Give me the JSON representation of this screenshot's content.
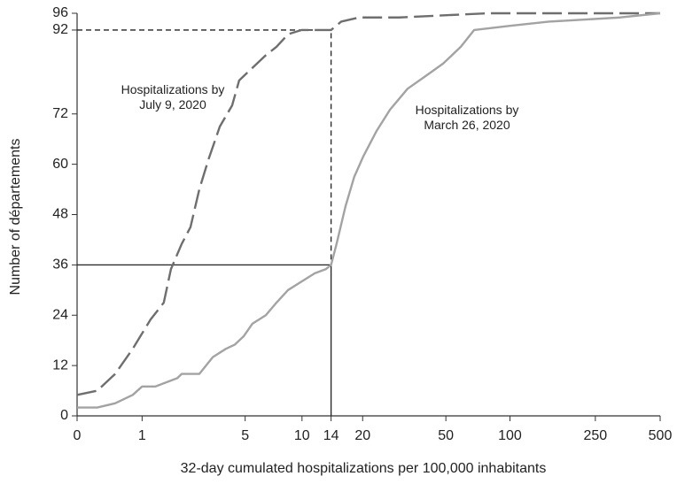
{
  "chart_data": {
    "type": "line",
    "x_label": "32-day cumulated hospitalizations per 100,000 inhabitants",
    "y_label": "Number of départements",
    "xscale": "log1p",
    "xlim": [
      0,
      500
    ],
    "xticks": [
      0,
      1,
      5,
      10,
      14,
      20,
      50,
      100,
      250,
      500
    ],
    "ylim": [
      0,
      96
    ],
    "yticks": [
      0,
      12,
      24,
      36,
      48,
      60,
      72,
      92,
      96
    ],
    "guides": [
      {
        "x": 14,
        "y": 92,
        "dashed": true
      },
      {
        "x": 14,
        "y": 36,
        "dashed": false
      }
    ],
    "series": [
      {
        "name": "Hospitalizations by July 9, 2020",
        "color": "#6e6e6e",
        "dashed": true,
        "x": [
          0,
          0.24,
          0.5,
          0.81,
          1.19,
          1.52,
          1.72,
          2.05,
          2.35,
          2.68,
          3.05,
          3.58,
          4.22,
          4.63,
          5.49,
          6.48,
          7.38,
          8.48,
          9.92,
          11.6,
          14,
          15.7,
          19.2,
          29.9,
          78.4,
          500
        ],
        "values": [
          5,
          6,
          10,
          16,
          23,
          27,
          35,
          41,
          45,
          54,
          61,
          69,
          74,
          80,
          83,
          86,
          88,
          91,
          92,
          92,
          92,
          94,
          95,
          95,
          96,
          96
        ]
      },
      {
        "name": "Hospitalizations by March 26, 2020",
        "color": "#a3a3a3",
        "dashed": false,
        "x": [
          0,
          0.24,
          0.5,
          0.81,
          1,
          1.3,
          1.91,
          2.05,
          2.68,
          3.25,
          3.89,
          4.38,
          4.91,
          5.49,
          6.48,
          7.38,
          8.48,
          9.92,
          11.6,
          13.2,
          14,
          14.9,
          16.5,
          18.2,
          20.2,
          23.4,
          27.1,
          32.9,
          40,
          48.5,
          58.8,
          67.9,
          100,
          152,
          326,
          500
        ],
        "values": [
          2,
          2,
          3,
          5,
          7,
          7,
          9,
          10,
          10,
          14,
          16,
          17,
          19,
          22,
          24,
          27,
          30,
          32,
          34,
          35,
          36,
          41,
          50,
          57,
          62,
          68,
          73,
          78,
          81,
          84,
          88,
          92,
          93,
          94,
          95,
          96
        ]
      }
    ]
  }
}
